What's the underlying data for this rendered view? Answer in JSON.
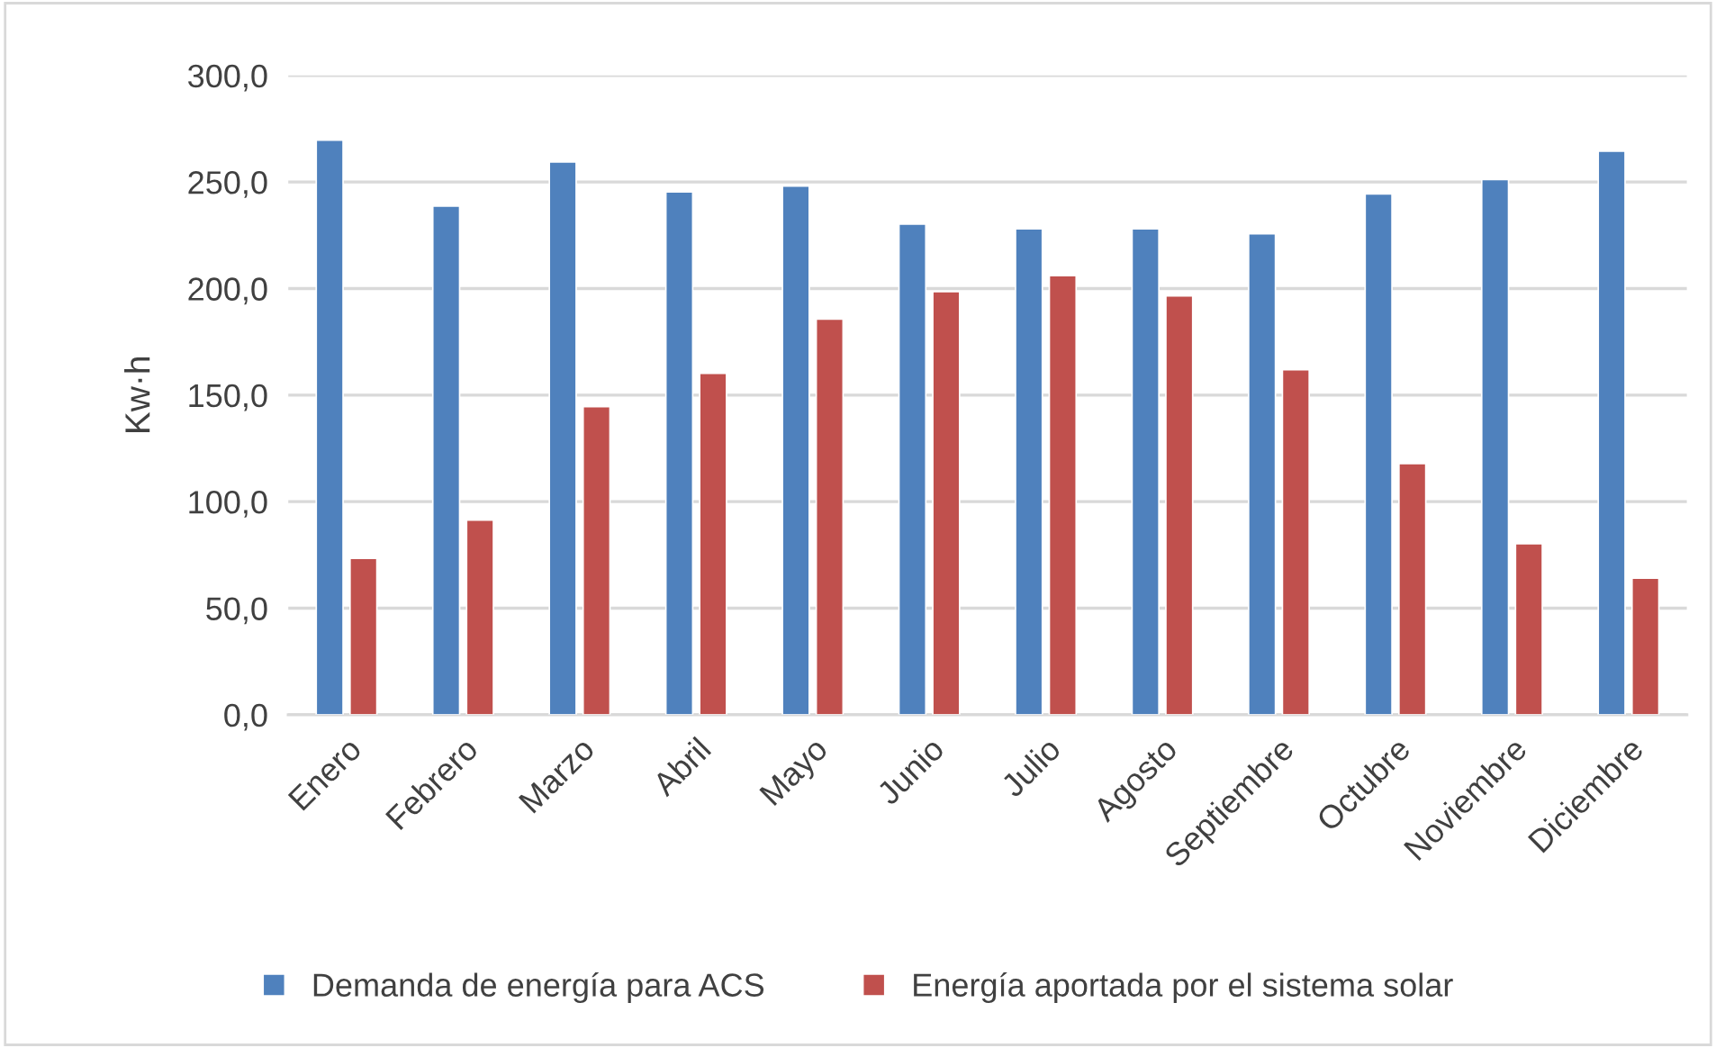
{
  "chart_data": {
    "type": "bar",
    "ylabel": "Kw·h",
    "categories": [
      "Enero",
      "Febrero",
      "Marzo",
      "Abril",
      "Mayo",
      "Junio",
      "Julio",
      "Agosto",
      "Septiembre",
      "Octubre",
      "Noviembre",
      "Diciembre"
    ],
    "series": [
      {
        "name": "Demanda de energía para ACS",
        "color": "#4f81bd",
        "values": [
          269.6,
          238.7,
          259.4,
          245.3,
          248.1,
          230.2,
          228.0,
          228.0,
          225.7,
          244.4,
          251.2,
          264.5
        ]
      },
      {
        "name": "Energía aportada por el sistema solar",
        "color": "#c0504d",
        "values": [
          73.4,
          91.3,
          144.6,
          160.2,
          185.7,
          198.5,
          206.1,
          196.5,
          161.9,
          117.9,
          80.2,
          64.1
        ]
      }
    ],
    "ylim": [
      0,
      300
    ],
    "yticks": [
      {
        "value": 0,
        "label": "0,0"
      },
      {
        "value": 50,
        "label": "50,0"
      },
      {
        "value": 100,
        "label": "100,0"
      },
      {
        "value": 150,
        "label": "150,0"
      },
      {
        "value": 200,
        "label": "200,0"
      },
      {
        "value": 250,
        "label": "250,0"
      },
      {
        "value": 300,
        "label": "300,0"
      }
    ],
    "grid": "y",
    "legend": "bottom"
  }
}
